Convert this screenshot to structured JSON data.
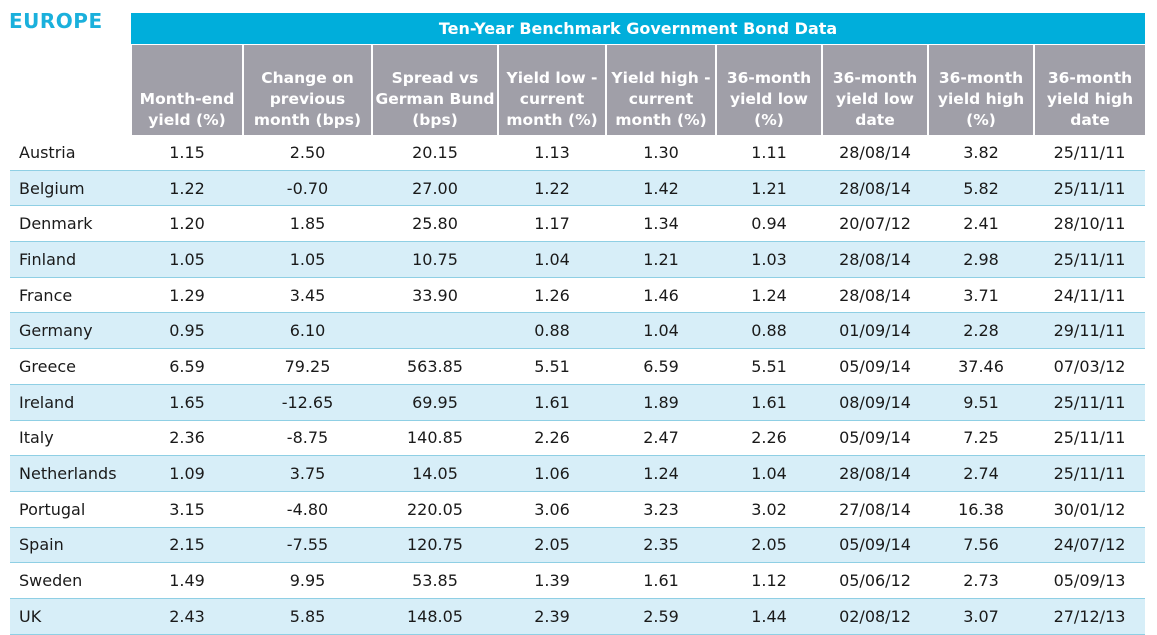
{
  "region_title": "EUROPE",
  "table_title": "Ten-Year Benchmark Government Bond Data",
  "columns": [
    "",
    "Month-end yield (%)",
    "Change on previous month (bps)",
    "Spread vs German Bund (bps)",
    "Yield low - current month (%)",
    "Yield high - current month (%)",
    "36-month yield low (%)",
    "36-month yield low date",
    "36-month yield high (%)",
    "36-month yield high date"
  ],
  "rows": [
    [
      "Austria",
      "1.15",
      "2.50",
      "20.15",
      "1.13",
      "1.30",
      "1.11",
      "28/08/14",
      "3.82",
      "25/11/11"
    ],
    [
      "Belgium",
      "1.22",
      "-0.70",
      "27.00",
      "1.22",
      "1.42",
      "1.21",
      "28/08/14",
      "5.82",
      "25/11/11"
    ],
    [
      "Denmark",
      "1.20",
      "1.85",
      "25.80",
      "1.17",
      "1.34",
      "0.94",
      "20/07/12",
      "2.41",
      "28/10/11"
    ],
    [
      "Finland",
      "1.05",
      "1.05",
      "10.75",
      "1.04",
      "1.21",
      "1.03",
      "28/08/14",
      "2.98",
      "25/11/11"
    ],
    [
      "France",
      "1.29",
      "3.45",
      "33.90",
      "1.26",
      "1.46",
      "1.24",
      "28/08/14",
      "3.71",
      "24/11/11"
    ],
    [
      "Germany",
      "0.95",
      "6.10",
      "",
      "0.88",
      "1.04",
      "0.88",
      "01/09/14",
      "2.28",
      "29/11/11"
    ],
    [
      "Greece",
      "6.59",
      "79.25",
      "563.85",
      "5.51",
      "6.59",
      "5.51",
      "05/09/14",
      "37.46",
      "07/03/12"
    ],
    [
      "Ireland",
      "1.65",
      "-12.65",
      "69.95",
      "1.61",
      "1.89",
      "1.61",
      "08/09/14",
      "9.51",
      "25/11/11"
    ],
    [
      "Italy",
      "2.36",
      "-8.75",
      "140.85",
      "2.26",
      "2.47",
      "2.26",
      "05/09/14",
      "7.25",
      "25/11/11"
    ],
    [
      "Netherlands",
      "1.09",
      "3.75",
      "14.05",
      "1.06",
      "1.24",
      "1.04",
      "28/08/14",
      "2.74",
      "25/11/11"
    ],
    [
      "Portugal",
      "3.15",
      "-4.80",
      "220.05",
      "3.06",
      "3.23",
      "3.02",
      "27/08/14",
      "16.38",
      "30/01/12"
    ],
    [
      "Spain",
      "2.15",
      "-7.55",
      "120.75",
      "2.05",
      "2.35",
      "2.05",
      "05/09/14",
      "7.56",
      "24/07/12"
    ],
    [
      "Sweden",
      "1.49",
      "9.95",
      "53.85",
      "1.39",
      "1.61",
      "1.12",
      "05/06/12",
      "2.73",
      "05/09/13"
    ],
    [
      "UK",
      "2.43",
      "5.85",
      "148.05",
      "2.39",
      "2.59",
      "1.44",
      "02/08/12",
      "3.07",
      "27/12/13"
    ]
  ],
  "colors": {
    "accent": "#00aedb",
    "header_bg": "#a09fa8",
    "row_shade": "#d7eef8"
  }
}
